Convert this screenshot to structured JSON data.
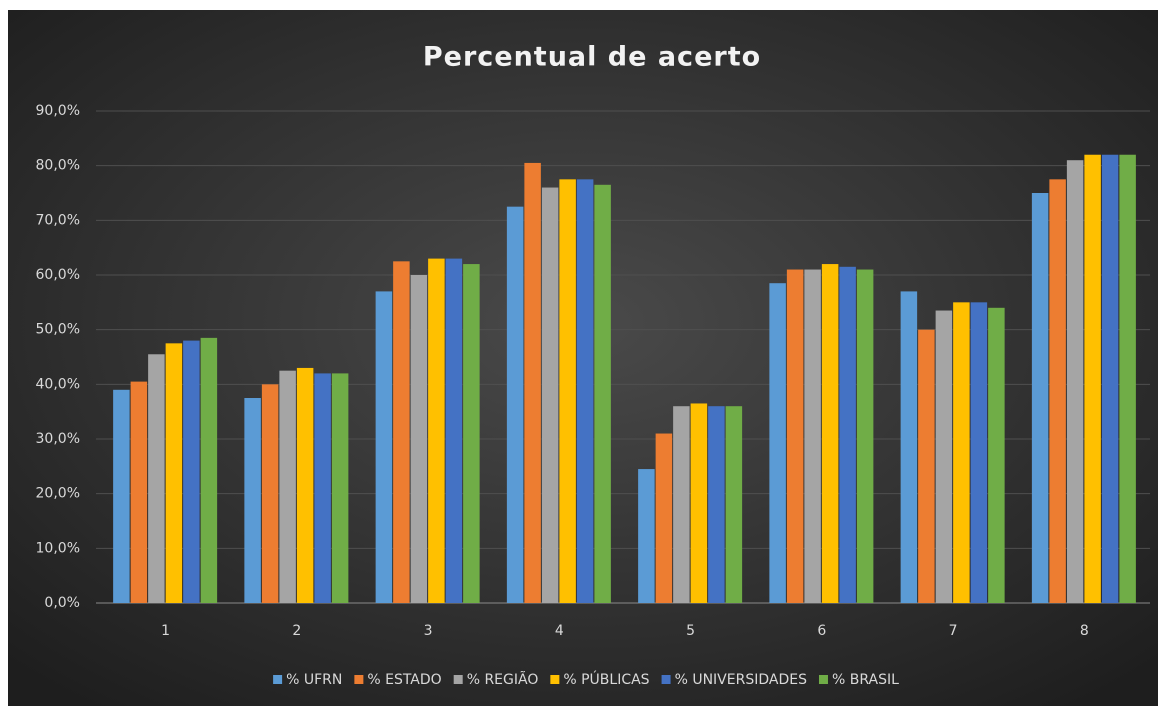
{
  "chart_data": {
    "type": "bar",
    "title": "Percentual  de acerto",
    "categories": [
      "1",
      "2",
      "3",
      "4",
      "5",
      "6",
      "7",
      "8"
    ],
    "series": [
      {
        "name": "% UFRN",
        "color": "#5b9bd5",
        "values": [
          39,
          37.5,
          57,
          72.5,
          24.5,
          58.5,
          57,
          75
        ]
      },
      {
        "name": "% ESTADO",
        "color": "#ed7d31",
        "values": [
          40.5,
          40,
          62.5,
          80.5,
          31,
          61,
          50,
          77.5
        ]
      },
      {
        "name": "% REGIÃO",
        "color": "#a5a5a5",
        "values": [
          45.5,
          42.5,
          60,
          76,
          36,
          61,
          53.5,
          81
        ]
      },
      {
        "name": "% PÚBLICAS",
        "color": "#ffc000",
        "values": [
          47.5,
          43,
          63,
          77.5,
          36.5,
          62,
          55,
          82
        ]
      },
      {
        "name": "% UNIVERSIDADES",
        "color": "#4472c4",
        "values": [
          48,
          42,
          63,
          77.5,
          36,
          61.5,
          55,
          82
        ]
      },
      {
        "name": "% BRASIL",
        "color": "#70ad47",
        "values": [
          48.5,
          42,
          62,
          76.5,
          36,
          61,
          54,
          82
        ]
      }
    ],
    "ylim": [
      0,
      90
    ],
    "yticks": [
      {
        "value": 0,
        "label": "0,0%"
      },
      {
        "value": 10,
        "label": "10,0%"
      },
      {
        "value": 20,
        "label": "20,0%"
      },
      {
        "value": 30,
        "label": "30,0%"
      },
      {
        "value": 40,
        "label": "40,0%"
      },
      {
        "value": 50,
        "label": "50,0%"
      },
      {
        "value": 60,
        "label": "60,0%"
      },
      {
        "value": 70,
        "label": "70,0%"
      },
      {
        "value": 80,
        "label": "80,0%"
      },
      {
        "value": 90,
        "label": "90,0%"
      }
    ],
    "grid": true,
    "legend": "bottom"
  }
}
